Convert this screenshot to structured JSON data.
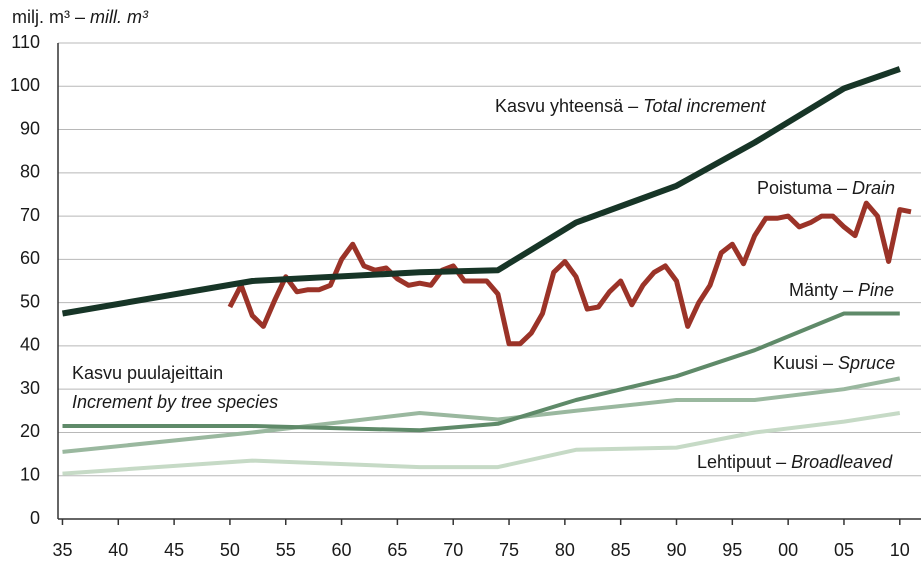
{
  "chart_data": {
    "type": "line",
    "y_title": {
      "fi": "milj. m³ –",
      "en": "mill. m³"
    },
    "annotation": [
      "Kasvu puulajeittain",
      "Increment by tree species"
    ],
    "xlim": [
      1934.6,
      2011.9
    ],
    "ylim": [
      0,
      110
    ],
    "yticks": [
      0,
      10,
      20,
      30,
      40,
      50,
      60,
      70,
      80,
      90,
      100,
      110
    ],
    "xticks": [
      {
        "value": 1935,
        "label": "35"
      },
      {
        "value": 1940,
        "label": "40"
      },
      {
        "value": 1945,
        "label": "45"
      },
      {
        "value": 1950,
        "label": "50"
      },
      {
        "value": 1955,
        "label": "55"
      },
      {
        "value": 1960,
        "label": "60"
      },
      {
        "value": 1965,
        "label": "65"
      },
      {
        "value": 1970,
        "label": "70"
      },
      {
        "value": 1975,
        "label": "75"
      },
      {
        "value": 1980,
        "label": "80"
      },
      {
        "value": 1985,
        "label": "85"
      },
      {
        "value": 1990,
        "label": "90"
      },
      {
        "value": 1995,
        "label": "95"
      },
      {
        "value": 2000,
        "label": "00"
      },
      {
        "value": 2005,
        "label": "05"
      },
      {
        "value": 2010,
        "label": "10"
      }
    ],
    "grid": true,
    "series": [
      {
        "label": {
          "fi": "Kasvu yhteensä –",
          "en": "Total increment"
        },
        "color": "#173527",
        "width": 6,
        "x": [
          1935,
          1952,
          1967,
          1974,
          1981,
          1990,
          1997,
          2005,
          2010
        ],
        "values": [
          47.5,
          55,
          57,
          57.5,
          68.5,
          77,
          87,
          99.5,
          104
        ]
      },
      {
        "label": {
          "fi": "Poistuma –",
          "en": "Drain"
        },
        "color": "#9b3328",
        "width": 5,
        "x": [
          1950,
          1951,
          1952,
          1953,
          1954,
          1955,
          1956,
          1957,
          1958,
          1959,
          1960,
          1961,
          1962,
          1963,
          1964,
          1965,
          1966,
          1967,
          1968,
          1969,
          1970,
          1971,
          1972,
          1973,
          1974,
          1975,
          1976,
          1977,
          1978,
          1979,
          1980,
          1981,
          1982,
          1983,
          1984,
          1985,
          1986,
          1987,
          1988,
          1989,
          1990,
          1991,
          1992,
          1993,
          1994,
          1995,
          1996,
          1997,
          1998,
          1999,
          2000,
          2001,
          2002,
          2003,
          2004,
          2005,
          2006,
          2007,
          2008,
          2009,
          2010,
          2011
        ],
        "values": [
          49,
          54,
          47,
          44.5,
          50.5,
          56,
          52.5,
          53,
          53,
          54,
          60,
          63.5,
          58.5,
          57.5,
          58,
          55.5,
          54,
          54.5,
          54,
          57.5,
          58.5,
          55,
          55,
          55,
          52,
          40.5,
          40.5,
          43,
          47.5,
          57,
          59.5,
          56,
          48.5,
          49,
          52.5,
          55,
          49.5,
          54,
          57,
          58.5,
          55,
          44.5,
          50,
          54,
          61.5,
          63.5,
          59,
          65.5,
          69.5,
          69.5,
          70,
          67.5,
          68.5,
          70,
          70,
          67.5,
          65.5,
          73,
          70,
          59.5,
          71.5,
          71
        ]
      },
      {
        "label": {
          "fi": "Mänty –",
          "en": "Pine"
        },
        "color": "#5f8a69",
        "width": 4,
        "x": [
          1935,
          1952,
          1967,
          1974,
          1981,
          1990,
          1997,
          2005,
          2010
        ],
        "values": [
          21.5,
          21.5,
          20.5,
          22,
          27.5,
          33,
          39,
          47.5,
          47.5
        ]
      },
      {
        "label": {
          "fi": "Kuusi –",
          "en": "Spruce"
        },
        "color": "#9ab89f",
        "width": 4,
        "x": [
          1935,
          1952,
          1967,
          1974,
          1981,
          1990,
          1997,
          2005,
          2010
        ],
        "values": [
          15.5,
          20,
          24.5,
          23,
          25,
          27.5,
          27.5,
          30,
          32.5
        ]
      },
      {
        "label": {
          "fi": "Lehtipuut –",
          "en": "Broadleaved"
        },
        "color": "#c6dac6",
        "width": 4,
        "x": [
          1935,
          1952,
          1967,
          1974,
          1981,
          1990,
          1997,
          2005,
          2010
        ],
        "values": [
          10.5,
          13.5,
          12,
          12,
          16,
          16.5,
          20,
          22.5,
          24.5
        ]
      }
    ]
  }
}
